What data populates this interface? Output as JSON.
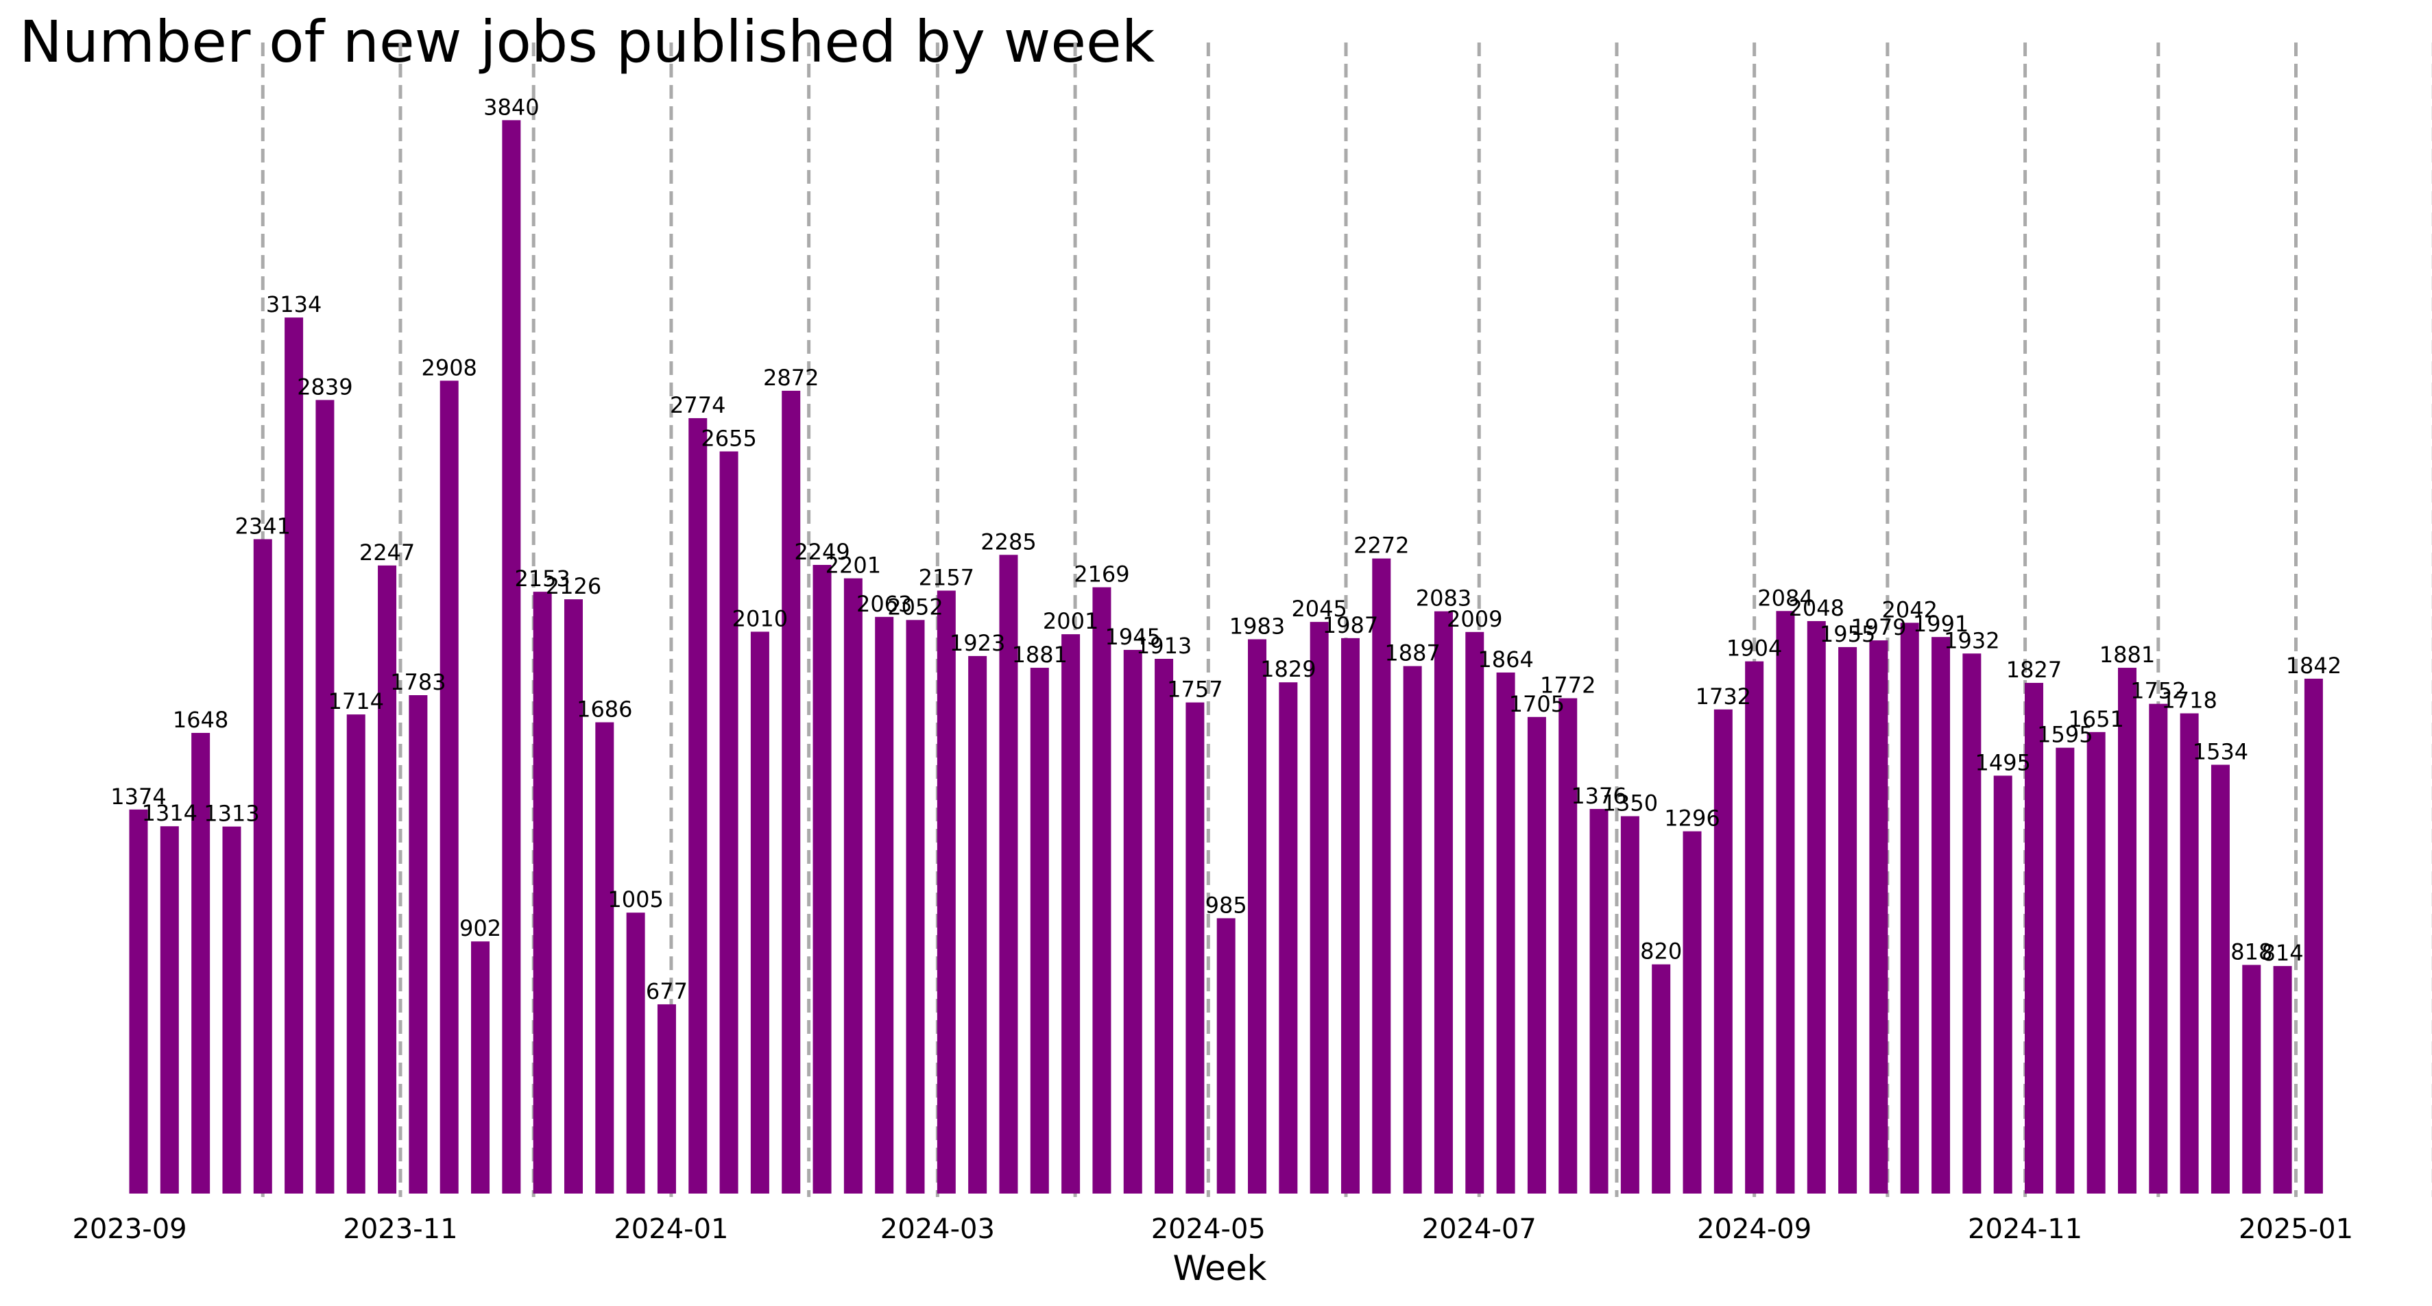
{
  "chart_data": {
    "type": "bar",
    "title": "Number of new jobs published by week",
    "xlabel": "Week",
    "ylabel": "",
    "ylim": [
      0,
      4032
    ],
    "grid": false,
    "bar_color": "#800080",
    "vline_color": "#aaaaaa",
    "x_ticks": [
      "2023-09",
      "2023-11",
      "2024-01",
      "2024-03",
      "2024-05",
      "2024-07",
      "2024-09",
      "2024-11",
      "2025-01"
    ],
    "month_lines": [
      "2023-10-01",
      "2023-11-01",
      "2023-12-01",
      "2024-01-01",
      "2024-02-01",
      "2024-03-01",
      "2024-04-01",
      "2024-05-01",
      "2024-06-01",
      "2024-07-01",
      "2024-08-01",
      "2024-09-01",
      "2024-10-01",
      "2024-11-01",
      "2024-12-01",
      "2025-01-01",
      "2025-02-01"
    ],
    "x": [
      "2023-09-03",
      "2023-09-10",
      "2023-09-17",
      "2023-09-24",
      "2023-10-01",
      "2023-10-08",
      "2023-10-15",
      "2023-10-22",
      "2023-10-29",
      "2023-11-05",
      "2023-11-12",
      "2023-11-19",
      "2023-11-26",
      "2023-12-03",
      "2023-12-10",
      "2023-12-17",
      "2023-12-24",
      "2023-12-31",
      "2024-01-07",
      "2024-01-14",
      "2024-01-21",
      "2024-01-28",
      "2024-02-04",
      "2024-02-11",
      "2024-02-18",
      "2024-02-25",
      "2024-03-03",
      "2024-03-10",
      "2024-03-17",
      "2024-03-24",
      "2024-03-31",
      "2024-04-07",
      "2024-04-14",
      "2024-04-21",
      "2024-04-28",
      "2024-05-05",
      "2024-05-12",
      "2024-05-19",
      "2024-05-26",
      "2024-06-02",
      "2024-06-09",
      "2024-06-16",
      "2024-06-23",
      "2024-06-30",
      "2024-07-07",
      "2024-07-14",
      "2024-07-21",
      "2024-07-28",
      "2024-08-04",
      "2024-08-11",
      "2024-08-18",
      "2024-08-25",
      "2024-09-01",
      "2024-09-08",
      "2024-09-15",
      "2024-09-22",
      "2024-09-29",
      "2024-10-06",
      "2024-10-13",
      "2024-10-20",
      "2024-10-27",
      "2024-11-03",
      "2024-11-10",
      "2024-11-17",
      "2024-11-24",
      "2024-12-01",
      "2024-12-08",
      "2024-12-15",
      "2024-12-22",
      "2024-12-29",
      "2025-01-05"
    ],
    "values": [
      1374,
      1314,
      1648,
      1313,
      2341,
      3134,
      2839,
      1714,
      2247,
      1783,
      2908,
      902,
      3840,
      2153,
      2126,
      1686,
      1005,
      677,
      2774,
      2655,
      2010,
      2872,
      2249,
      2201,
      2063,
      2052,
      2157,
      1923,
      2285,
      1881,
      2001,
      2169,
      1945,
      1913,
      1757,
      985,
      1983,
      1829,
      2045,
      1987,
      2272,
      1887,
      2083,
      2009,
      1864,
      1705,
      1772,
      1376,
      1350,
      820,
      1296,
      1732,
      1904,
      2084,
      2048,
      1955,
      1979,
      2042,
      1991,
      1932,
      1495,
      1827,
      1595,
      1651,
      1881,
      1752,
      1718,
      1534,
      818,
      814,
      1842
    ]
  }
}
